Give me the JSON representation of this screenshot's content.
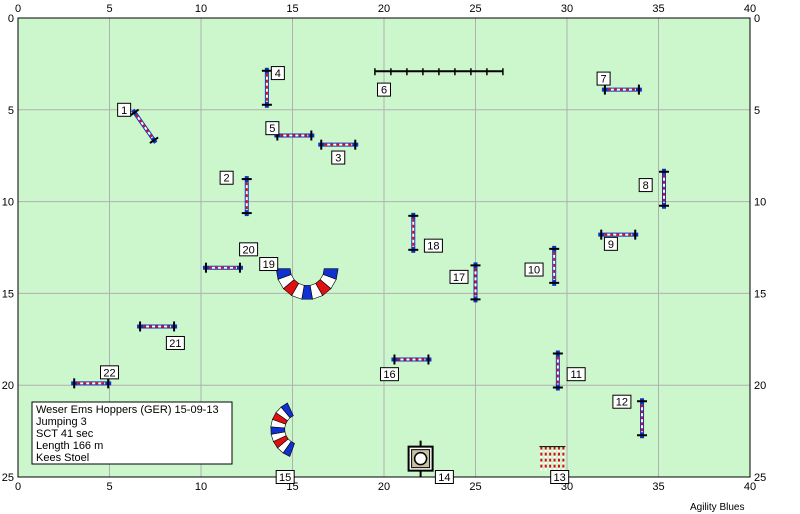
{
  "arena": {
    "x_range": [
      0,
      40
    ],
    "y_range": [
      0,
      25
    ],
    "x_ticks": [
      0,
      5,
      10,
      15,
      20,
      25,
      30,
      35,
      40
    ],
    "y_ticks": [
      0,
      5,
      10,
      15,
      20,
      25
    ],
    "background": "#ccf7cc",
    "grid_color": "#b0b0b0"
  },
  "info": {
    "line1": "Weser Ems Hoppers (GER) 15-09-13",
    "line2": "Jumping 3",
    "line3": "SCT 41 sec",
    "line4": "Length 166 m",
    "line5": "Kees Stoel"
  },
  "credit": "Agility Blues",
  "obstacles": [
    {
      "num": "1",
      "type": "jump",
      "x": 6.9,
      "y": 5.9,
      "angle": 55,
      "lx": 5.8,
      "ly": 5.0
    },
    {
      "num": "2",
      "type": "jump",
      "x": 12.5,
      "y": 9.7,
      "angle": 90,
      "lx": 11.4,
      "ly": 8.7
    },
    {
      "num": "3",
      "type": "jump",
      "x": 17.5,
      "y": 6.9,
      "angle": 0,
      "lx": 17.5,
      "ly": 7.6
    },
    {
      "num": "4",
      "type": "jump",
      "x": 13.6,
      "y": 3.8,
      "angle": 90,
      "lx": 14.2,
      "ly": 3.0
    },
    {
      "num": "5",
      "type": "jump",
      "x": 15.1,
      "y": 6.4,
      "angle": 0,
      "lx": 13.9,
      "ly": 6.0
    },
    {
      "num": "6",
      "type": "wall",
      "x": 23.0,
      "y": 2.9,
      "angle": 0,
      "lx": 20.0,
      "ly": 3.9
    },
    {
      "num": "7",
      "type": "jump",
      "x": 33.0,
      "y": 3.9,
      "angle": 0,
      "lx": 32.0,
      "ly": 3.3
    },
    {
      "num": "8",
      "type": "jump",
      "x": 35.3,
      "y": 9.3,
      "angle": 90,
      "lx": 34.3,
      "ly": 9.1
    },
    {
      "num": "9",
      "type": "jump",
      "x": 32.8,
      "y": 11.8,
      "angle": 0,
      "lx": 32.4,
      "ly": 12.3
    },
    {
      "num": "10",
      "type": "jump",
      "x": 29.3,
      "y": 13.5,
      "angle": 90,
      "lx": 28.2,
      "ly": 13.7
    },
    {
      "num": "11",
      "type": "jump",
      "x": 29.5,
      "y": 19.2,
      "angle": 90,
      "lx": 30.5,
      "ly": 19.4
    },
    {
      "num": "12",
      "type": "jump",
      "x": 34.1,
      "y": 21.8,
      "angle": 90,
      "lx": 33.0,
      "ly": 20.9
    },
    {
      "num": "13",
      "type": "weave",
      "x": 29.2,
      "y": 24.0,
      "angle": 0,
      "lx": 29.6,
      "ly": 25.0
    },
    {
      "num": "14",
      "type": "table",
      "x": 22.0,
      "y": 24.0,
      "angle": 0,
      "lx": 23.3,
      "ly": 25.0
    },
    {
      "num": "15",
      "type": "tunnel-c",
      "x": 14.3,
      "y": 22.4,
      "angle": 0,
      "lx": 14.6,
      "ly": 25.0
    },
    {
      "num": "17",
      "type": "jump",
      "x": 25.0,
      "y": 14.4,
      "angle": 90,
      "lx": 24.1,
      "ly": 14.1
    },
    {
      "num": "16",
      "type": "jump",
      "x": 21.5,
      "y": 18.6,
      "angle": 0,
      "lx": 20.3,
      "ly": 19.4
    },
    {
      "num": "18",
      "type": "jump",
      "x": 21.6,
      "y": 11.7,
      "angle": 90,
      "lx": 22.7,
      "ly": 12.4
    },
    {
      "num": "19",
      "type": "tunnel-u",
      "x": 15.8,
      "y": 14.2,
      "angle": 0,
      "lx": 13.7,
      "ly": 13.4
    },
    {
      "num": "20",
      "type": "jump",
      "x": 11.2,
      "y": 13.6,
      "angle": 0,
      "lx": 12.6,
      "ly": 12.6
    },
    {
      "num": "21",
      "type": "jump",
      "x": 7.6,
      "y": 16.8,
      "angle": 0,
      "lx": 8.6,
      "ly": 17.7
    },
    {
      "num": "22",
      "type": "jump",
      "x": 4.0,
      "y": 19.9,
      "angle": 0,
      "lx": 5.0,
      "ly": 19.3
    }
  ]
}
